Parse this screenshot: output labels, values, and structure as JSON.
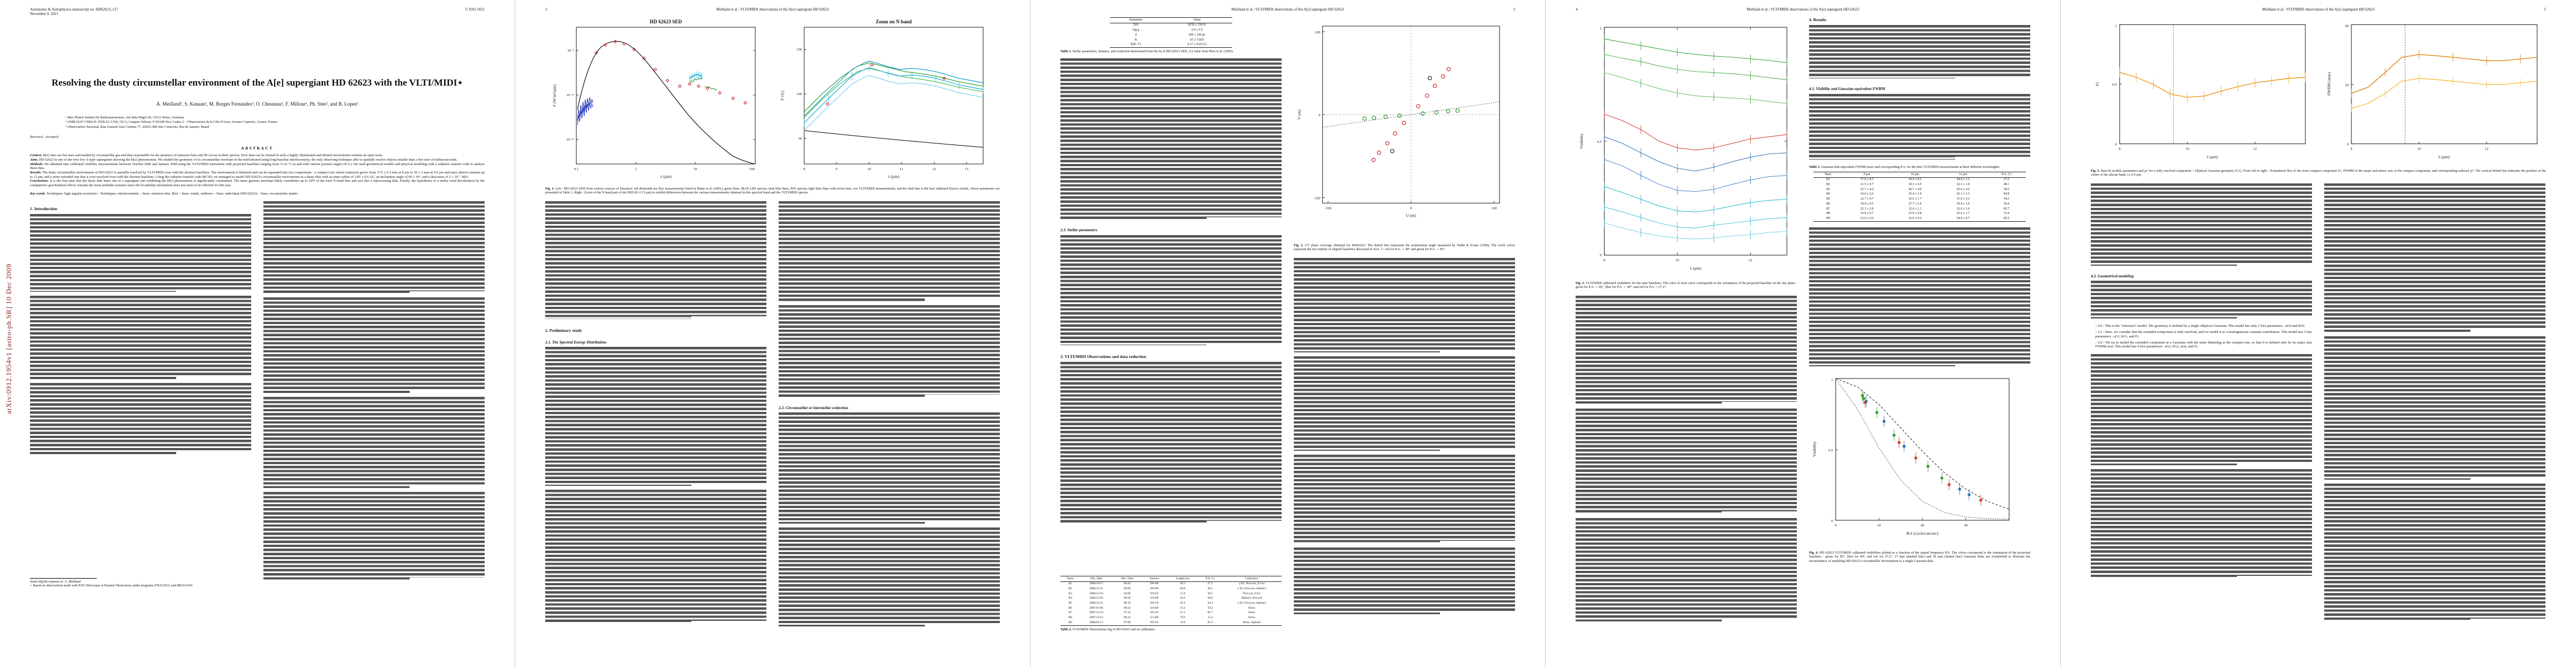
{
  "arxiv_stamp": "arXiv:0912.1954v1  [astro-ph.SR]  10 Dec 2009",
  "running_header": "Meilland et al.: VLTI/MIDI observations of the A[e] supergiant HD 62623",
  "p1": {
    "manuscript_line": "Astronomy & Astrophysics manuscript no. HD62623_v17",
    "date_line": "November 9, 2021",
    "eso_line": "© ESO 2021",
    "title": "Resolving the dusty circumstellar environment of the A[e] supergiant HD 62623 with the VLTI/MIDI⋆",
    "authors": "A. Meilland¹, S. Kanaan², M. Borges Fernandes³, O. Chesneau², F. Millour¹, Ph. Stee², and B. Lopez²",
    "affiliations": [
      "¹ Max Planck Institut für Radioastronomie, Auf dem Hügel 69, 53121 Bonn, Germany",
      "² UMR 6525 CNRS H. FIZEAU UNS, OCA, Campus Valrose, F-06108 Nice Cedex 2 – Observatoire de la Côte d'Azur, Avenue Copernic, Grasse, France",
      "³ Observatório Nacional, Rua General José Cristino 77, 20921-400 São Cristovão, Rio de Janeiro, Brazil"
    ],
    "received": "Received ; accepted",
    "abstract_label": "ABSTRACT",
    "abstract": [
      {
        "lead": "Context.",
        "text": "B[e] stars are hot stars surrounded by circumstellar gas and dust responsible for the presence of emission lines and IR excess in their spectra. How dust can be formed in such a highly illuminated and diluted environment remains an open issue."
      },
      {
        "lead": "Aims.",
        "text": "HD 62623 is one of the very few A-type supergiants showing the B[e] phenomenon. We studied the geometry of its circumstellar envelope in the mid-infrared using long-baseline interferometry, the only observing technique able to spatially resolve objects smaller than a few tens of milliarcseconds."
      },
      {
        "lead": "Methods.",
        "text": "We obtained nine calibrated visibility measurements between October 2006 and January 2008 using the VLTI/MIDI instrument with projected baselines ranging from 13 to 71 m and with various position angles (P.A.). We used geometrical models and physical modeling with a radiative transfer code to analyse these data."
      },
      {
        "lead": "Results.",
        "text": "The dusty circumstellar environment of HD 62623 is partially resolved by VLTI/MIDI even with the shortest baselines. The environment is flattened and can be separated into two components : a compact one whose extension grows from 17.6 ± 0.3 mas at 8 μm to 30 ± 2 mas at 9.6 μm and stays almost constant up to 13 μm, and a more extended one that is over-resolved even with the shortest baselines. Using the radiative transfer code MC3D, we managed to model HD 62623's circumstellar environment as a dusty disk with an inner radius of 3.85 ± 0.6 AU, an inclination angle of 60 ± 10°, and a dust mass of 2 × 10⁻⁷ M⊙."
      },
      {
        "lead": "Conclusions.",
        "text": "It is the first time that the dusty disk inner rim of a supergiant star exhibiting the B[e] phenomenon is significantly constrained. The inner gaseous envelope likely contributes up to 20% of the total N band flux and acts like a reprocessing disk. Finally, the hypothesis of a stellar wind deceleration by the companion's gravitational effects remains the most probable scenario since the bi-stability mechanism does not seem to be efficient for this star."
      }
    ],
    "keywords_lead": "Key words.",
    "keywords": "Techniques: high angular resolution – Techniques: interferometric – Stars: emission-line, B[e] – Stars: winds, outflows – Stars: individual (HD 62623) – Stars: circumstellar matter",
    "section_intro": "1. Introduction",
    "footnote_offprint": "Send offprint requests to: A. Meilland",
    "footnote_star": "⋆ Based on observations made with ESO Telescopes at Paranal Observatory under programs 078.D-0511 and 080.D-0181"
  },
  "p2": {
    "page_no": "2",
    "fig1": {
      "left_title": "HD 62623 SED",
      "right_title": "Zoom on N band",
      "xlabel": "λ (μm)",
      "left_ylabel": "F (W/m²/μm)",
      "right_ylabel": "F (Jy)",
      "left_xticks": [
        "0.1",
        "1",
        "10",
        "100"
      ],
      "left_yticks": [
        "10⁻⁹",
        "10⁻¹¹",
        "10⁻¹³"
      ],
      "right_xticks": [
        "8",
        "9",
        "10",
        "11",
        "12",
        "13"
      ],
      "right_yticks": [
        "150",
        "100",
        "50"
      ]
    },
    "fig1_caption_lead": "Fig. 1.",
    "fig1_caption": "Left : HD 62623 SED from various sources of literature: red diamonds are flux measurements listed in Bittar et al. (2001); green lines, IRAS LRS spectra; dark blue lines, IUE spectra; light blue lines with errors bars, our VLTI/MIDI measurements; and the dark line is the best reddened Kurucz model, whose parameters are presented in Table 1. Right : Zoom of the N band part of the SED (8–13.5 μm) to exhibit differences between the various measurements obtained in this spectral band and the VLTI/MIDI spectra.",
    "sec2": "2. Preliminary study",
    "sec21": "2.1. The Spectral Energy Distribution",
    "sec22": "2.2. Circumstellar or interstellar extinction"
  },
  "p3": {
    "page_no": "3",
    "table1_caption_lead": "Table 1.",
    "table1_caption": "Stellar parameters, distance, and extinction determined from the fit of HD 62623 SED. (1) value from Plets et al. (1995).",
    "table1_headers": [
      "Parameter",
      "Value"
    ],
    "table1_rows": [
      [
        "Teff",
        "8250 ± 250 K"
      ],
      [
        "log g",
        "2.0 ± 0.5"
      ],
      [
        "d",
        "650 ± 100 pc"
      ],
      [
        "R",
        "65 ± 5 R⊙"
      ],
      [
        "E(B−V)",
        "0.17 ± 0.03 (1)"
      ]
    ],
    "sec23": "2.3. Stellar parameters",
    "sec3": "3. VLTI/MIDI Observations and data reduction",
    "table2_caption_lead": "Table 2.",
    "table2_caption": "VLTI/MIDI Observations log of HD 62623 and its calibrators.",
    "table2_headers": [
      "Name",
      "Obs. Date",
      "Obs. Time",
      "Stations",
      "Length (m)",
      "P.A. (°)",
      "Calibrators"
    ],
    "table2_rows": [
      [
        "B1",
        "2006/10/17",
        "06:42",
        "D0-H0",
        "49.5",
        "27.2",
        "γ Eri, Procyon, β Gru"
      ],
      [
        "B2",
        "2006/12/31",
        "08:09",
        "D0-H0",
        "60.8",
        "40.1",
        "γ Eri, Procyon, Alphard"
      ],
      [
        "B3",
        "2006/12/16",
        "04:00",
        "E0-G0",
        "13.4",
        "38.5",
        "Procyon, δ Eri"
      ],
      [
        "B4",
        "2006/12/16",
        "08:38",
        "G0-H0",
        "56.6",
        "84.8",
        "Alphard, Procyon"
      ],
      [
        "B5",
        "2006/12/21",
        "08:19",
        "D0-G0",
        "29.4",
        "44.3",
        "γ Eri, Procyon, Alphard"
      ],
      [
        "B6",
        "2007/01/04",
        "08:22",
        "G0-H0",
        "31.3",
        "59.4",
        "Sirius"
      ],
      [
        "B7",
        "2007/12/10",
        "07:32",
        "E0-G0",
        "15.1",
        "85.7",
        "Sirius"
      ],
      [
        "B8",
        "2007/12/14",
        "08:13",
        "G1-H0",
        "70.9",
        "15.4",
        "Sirius"
      ],
      [
        "B9",
        "2008/01/12",
        "07:08",
        "E0-G0",
        "14.0",
        "85.5",
        "Sirius, Alphard"
      ]
    ],
    "fig2": {
      "xlabel": "U (m)",
      "ylabel": "V (m)",
      "xticks": [
        "-100",
        "0",
        "100"
      ],
      "yticks": [
        "100",
        "0",
        "-100"
      ]
    },
    "fig2_caption_lead": "Fig. 2.",
    "fig2_caption": "UV plane coverage obtained for HD62623. The dotted line represents the polarization angle measured by Yudin & Evans (1998). The circle colors represent the two triplets of aligned baselines discussed in Sect. 3 : red for P.A. ∼ 40° and green for P.A. ∼ 85°."
  },
  "p4": {
    "page_no": "4",
    "fig3": {
      "xlabel": "λ (μm)",
      "ylabel": "Visibility",
      "xticks": [
        "8",
        "10",
        "12"
      ],
      "yticks": [
        "1",
        "0.5",
        "0"
      ]
    },
    "fig3_caption_lead": "Fig. 3.",
    "fig3_caption": "VLTI/MIDI calibrated visibilities for the nine baselines. The color of each curve corresponds to the orientation of the projected baseline on the sky plane : green for P.A. ∼ 85°, blue for P.A. ∼ 40°, and red for P.A. = 27.2°.",
    "sec4": "4. Results",
    "sec41": "4.1. Visibility and Gaussian equivalent FWHM",
    "table3_caption_lead": "Table 3.",
    "table3_caption": "Gaussian disk equivalent FWHM (mas) and corresponding P.A. for the nine VLTI/MIDI measurements at three different wavelengths.",
    "table3_headers": [
      "Base",
      "8 μm",
      "10 μm",
      "13 μm",
      "P.A. (°)"
    ],
    "table3_rows": [
      [
        "B1",
        "17.6 ± 0.3",
        "24.4 ± 0.3",
        "24.6 ± 1.2",
        "27.2"
      ],
      [
        "B2",
        "21.5 ± 0.7",
        "30.3 ± 0.5",
        "32.3 ± 1.0",
        "40.1"
      ],
      [
        "B3",
        "23.7 ± 4.0",
        "40.7 ± 4.9",
        "43.6 ± 6.6",
        "38.5"
      ],
      [
        "B4",
        "16.6 ± 2.6",
        "26.4 ± 1.0",
        "26.1 ± 1.5",
        "84.8"
      ],
      [
        "B5",
        "22.7 ± 0.7",
        "32.6 ± 1.7",
        "31.6 ± 3.3",
        "44.3"
      ],
      [
        "B6",
        "18.9 ± 0.5",
        "27.7 ± 1.9",
        "30.4 ± 1.6",
        "59.4"
      ],
      [
        "B7",
        "22.1 ± 2.8",
        "32.6 ± 1.1",
        "32.6 ± 1.6",
        "85.7"
      ],
      [
        "B8",
        "16.9 ± 0.7",
        "23.9 ± 0.8",
        "25.6 ± 1.7",
        "15.4"
      ],
      [
        "B9",
        "23.6 ± 6.0",
        "32.6 ± 0.6",
        "34.6 ± 0.7",
        "85.5"
      ]
    ],
    "fig4": {
      "xlabel": "B/λ (cycles/arcsec)",
      "ylabel": "Visibility",
      "xticks": [
        "0",
        "10",
        "20",
        "30"
      ],
      "yticks": [
        "1",
        "0.5",
        "0"
      ]
    },
    "fig4_caption_lead": "Fig. 4.",
    "fig4_caption": "HD 62623 VLTI/MIDI calibrated visibilities plotted as a function of the spatial frequency B/λ. The colors correspond to the orientation of the projected baselines : green for 85°, blue for 40°, and red for 27.2°. 17 mas (dashed line) and 30 mas (dotted line) Gaussian disks are overplotted to illustrate the inconsistency of modeling HD 62623's circumstellar environment as a single Gaussian disk."
  },
  "p5": {
    "page_no": "5",
    "fig5": {
      "xlabel": "λ (μm)",
      "left_ylabel": "Fc",
      "right_ylabel": "FWHM (mas)",
      "xticks": [
        "8",
        "10",
        "12"
      ],
      "left_yticks": [
        "1",
        "0.5",
        "0"
      ],
      "right_yticks": [
        "40",
        "20",
        "0"
      ]
    },
    "fig5_caption_lead": "Fig. 5.",
    "fig5_caption": "Best-fit models parameters and χr² for a fully resolved component + elliptical Gaussian geometry (G1). From left to right : Normalized flux of the most compact component Fc, FWHM of the major and minor axis of the compact component, and corresponding reduced χr². The vertical dotted line indicates the position of the center of the silicate band, i.e 9.6 μm.",
    "sec42": "4.2. Geometrical modeling",
    "models": [
      "– G0 : This is the \"reference\" model. The geometry is defined by a single elliptical Gaussian. This model has only 2 free parameters : aG0 and bG0.",
      "– G1 : Here, we consider that the extended component is fully resolved, and we model it as a homogeneous constant contribution. This model has 3 free parameters : aG1, bG1, and Fc.",
      "– G2 : We try to model the extended component as a Gaussian with the same flattening as the compact one, so that it is defined only by its major axis FWHM aext. This model has 4 free parameters : aG2, bG2, aext, and Fc."
    ]
  }
}
